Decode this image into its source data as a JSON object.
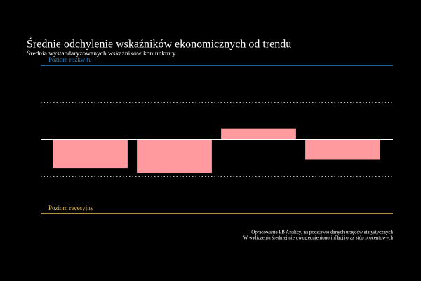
{
  "chart_data": {
    "type": "bar",
    "title": "Średnie odchylenie wskaźników ekonomicznych od trendu",
    "subtitle": "Średnia wystandaryzowanych wskaźników koniunktury",
    "categories": [
      null,
      null,
      null,
      null
    ],
    "values": [
      -0.77,
      -0.9,
      0.3,
      -0.55
    ],
    "color": "#ff9a9e",
    "ylim": [
      -2,
      2
    ],
    "zero_line": 0,
    "guides": [
      1,
      -1
    ],
    "reference_lines": [
      {
        "value": 2,
        "label": "Poziom rozkwitu",
        "color": "#2e86c1"
      },
      {
        "value": -2,
        "label": "Poziom recesyjny",
        "color": "#e6c35c"
      }
    ],
    "notes": [
      "Opracowanie PB Analizy, na podstawie danych urzędów statystycznych",
      "W wyliczeniu średniej nie uwzględnieniono inflacji oraz stóp procentowych"
    ]
  }
}
